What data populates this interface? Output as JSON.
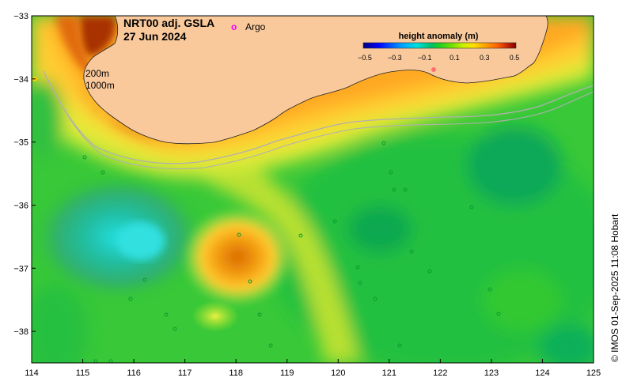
{
  "map": {
    "title": "NRT00 adj. GSLA",
    "date": "27 Jun 2024",
    "credit": "© IMOS 01-Sep-2025 11:08 Hobart",
    "x_range": [
      114,
      125
    ],
    "y_range": [
      -38.5,
      -33
    ],
    "x_ticks": [
      "114",
      "115",
      "116",
      "117",
      "118",
      "119",
      "120",
      "121",
      "122",
      "123",
      "124",
      "125"
    ],
    "y_ticks": [
      "−33",
      "−34",
      "−35",
      "−36",
      "−37",
      "−38"
    ],
    "legend": {
      "argo_marker": "o",
      "argo_label": "Argo",
      "isobath_200": "200m",
      "isobath_1000": "1000m",
      "argo_color": "#ff00ff",
      "isobath_color": "#aaaaaa"
    },
    "colorbar": {
      "title": "height anomaly (m)",
      "range": [
        -0.5,
        0.5
      ],
      "ticks": [
        "−0.5",
        "−0.3",
        "−0.1",
        "0.1",
        "0.3",
        "0.5"
      ],
      "colors": [
        "#000080",
        "#0000ff",
        "#00a0ff",
        "#00e0e0",
        "#00c060",
        "#20d020",
        "#70e000",
        "#c8f000",
        "#ffe000",
        "#ffa000",
        "#ff6000",
        "#c02000",
        "#800000"
      ]
    },
    "land_color": "#f9c99c"
  }
}
